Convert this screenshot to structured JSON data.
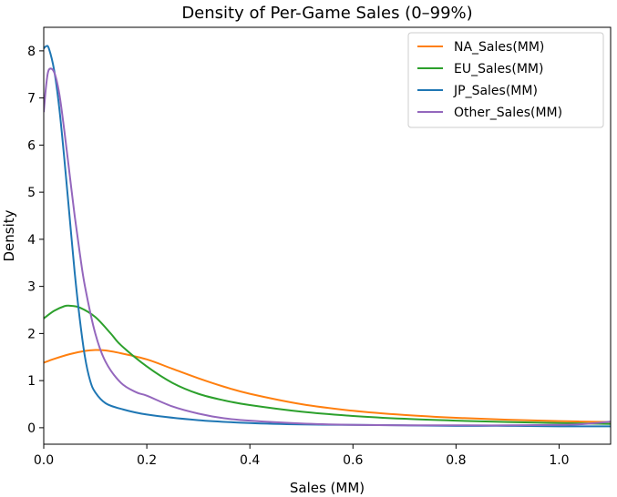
{
  "chart_data": {
    "type": "line",
    "title": "Density of Per-Game Sales (0–99%)",
    "xlabel": "Sales (MM)",
    "ylabel": "Density",
    "xlim": [
      0.0,
      1.1
    ],
    "ylim": [
      -0.35,
      8.5
    ],
    "xticks": [
      0.0,
      0.2,
      0.4,
      0.6,
      0.8,
      1.0
    ],
    "xtick_labels": [
      "0.0",
      "0.2",
      "0.4",
      "0.6",
      "0.8",
      "1.0"
    ],
    "yticks": [
      0,
      1,
      2,
      3,
      4,
      5,
      6,
      7,
      8
    ],
    "ytick_labels": [
      "0",
      "1",
      "2",
      "3",
      "4",
      "5",
      "6",
      "7",
      "8"
    ],
    "grid": false,
    "legend_position": "top-right",
    "series": [
      {
        "name": "NA_Sales(MM)",
        "color": "#ff7f0e",
        "x": [
          0.0,
          0.02,
          0.05,
          0.08,
          0.1,
          0.12,
          0.15,
          0.2,
          0.25,
          0.3,
          0.35,
          0.4,
          0.5,
          0.6,
          0.7,
          0.8,
          0.9,
          1.0,
          1.1
        ],
        "y": [
          1.38,
          1.46,
          1.56,
          1.63,
          1.65,
          1.64,
          1.58,
          1.45,
          1.25,
          1.05,
          0.87,
          0.72,
          0.5,
          0.36,
          0.27,
          0.21,
          0.17,
          0.14,
          0.12
        ]
      },
      {
        "name": "EU_Sales(MM)",
        "color": "#2ca02c",
        "x": [
          0.0,
          0.02,
          0.04,
          0.05,
          0.07,
          0.1,
          0.13,
          0.15,
          0.2,
          0.25,
          0.3,
          0.35,
          0.4,
          0.5,
          0.6,
          0.7,
          0.8,
          0.9,
          1.0,
          1.1
        ],
        "y": [
          2.32,
          2.48,
          2.58,
          2.59,
          2.55,
          2.35,
          2.0,
          1.75,
          1.3,
          0.95,
          0.72,
          0.58,
          0.48,
          0.34,
          0.25,
          0.19,
          0.15,
          0.12,
          0.1,
          0.08
        ]
      },
      {
        "name": "JP_Sales(MM)",
        "color": "#1f77b4",
        "x": [
          0.0,
          0.005,
          0.01,
          0.02,
          0.03,
          0.04,
          0.05,
          0.06,
          0.07,
          0.08,
          0.09,
          0.1,
          0.12,
          0.15,
          0.2,
          0.3,
          0.4,
          0.5,
          0.6,
          0.7,
          0.8,
          0.9,
          1.0,
          1.1
        ],
        "y": [
          8.05,
          8.1,
          8.05,
          7.6,
          6.8,
          5.7,
          4.5,
          3.3,
          2.3,
          1.5,
          1.0,
          0.75,
          0.52,
          0.4,
          0.28,
          0.16,
          0.1,
          0.07,
          0.06,
          0.05,
          0.04,
          0.04,
          0.03,
          0.03
        ]
      },
      {
        "name": "Other_Sales(MM)",
        "color": "#9467bd",
        "x": [
          0.0,
          0.005,
          0.01,
          0.02,
          0.03,
          0.04,
          0.05,
          0.06,
          0.07,
          0.08,
          0.1,
          0.12,
          0.15,
          0.18,
          0.2,
          0.25,
          0.3,
          0.35,
          0.4,
          0.5,
          0.6,
          0.7,
          0.8,
          0.9,
          1.0,
          1.05,
          1.1
        ],
        "y": [
          6.7,
          7.3,
          7.6,
          7.55,
          7.1,
          6.3,
          5.4,
          4.5,
          3.7,
          3.0,
          2.0,
          1.4,
          0.95,
          0.75,
          0.68,
          0.45,
          0.3,
          0.2,
          0.15,
          0.09,
          0.06,
          0.05,
          0.05,
          0.05,
          0.06,
          0.08,
          0.13
        ]
      }
    ]
  }
}
